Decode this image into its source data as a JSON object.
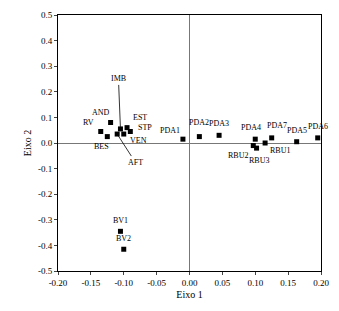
{
  "chart_data": {
    "type": "scatter",
    "x_label": "Eixo 1",
    "y_label": "Eixo 2",
    "labels": [
      "RV",
      "AND",
      "BES",
      "IMB",
      "EST",
      "STP",
      "VEN",
      "AFT",
      "BV1",
      "BV2",
      "PDA1",
      "PDA2",
      "PDA3",
      "PDA4",
      "PDA7",
      "RBU2",
      "RBU1",
      "RBU3",
      "PDA5",
      "PDA6"
    ],
    "x": [
      -0.135,
      -0.12,
      -0.125,
      -0.105,
      -0.095,
      -0.09,
      -0.1,
      -0.11,
      -0.105,
      -0.1,
      -0.01,
      0.015,
      0.045,
      0.1,
      0.125,
      0.097,
      0.115,
      0.102,
      0.163,
      0.195
    ],
    "y": [
      0.045,
      0.08,
      0.025,
      0.055,
      0.06,
      0.045,
      0.035,
      0.035,
      -0.345,
      -0.415,
      0.015,
      0.025,
      0.03,
      0.015,
      0.02,
      -0.01,
      0.0,
      -0.02,
      0.005,
      0.02
    ],
    "color": "#000000",
    "marker": "square",
    "xlim": [
      -0.2,
      0.2
    ],
    "ylim": [
      -0.5,
      0.5
    ],
    "xticks": [
      {
        "value": -0.2,
        "label": "-0.20"
      },
      -0.15,
      {
        "value": -0.1,
        "label": "-0.10"
      },
      -0.05,
      {
        "value": 0,
        "label": "0.00"
      },
      0.05,
      {
        "value": 0.1,
        "label": "0.10"
      },
      0.15,
      {
        "value": 0.2,
        "label": "0.20"
      }
    ],
    "yticks": [
      -0.5,
      -0.4,
      -0.3,
      -0.2,
      -0.1,
      {
        "value": 0,
        "label": "0.0"
      },
      0.1,
      0.2,
      0.3,
      0.4,
      0.5
    ],
    "grid": false
  }
}
